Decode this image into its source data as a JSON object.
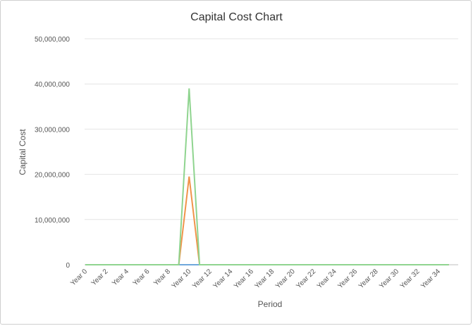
{
  "chart_data": {
    "type": "line",
    "title": "Capital Cost Chart",
    "xlabel": "Period",
    "ylabel": "Capital Cost",
    "ylim": [
      0,
      50000000
    ],
    "yticks": [
      0,
      10000000,
      20000000,
      30000000,
      40000000,
      50000000
    ],
    "ytick_labels": [
      "0",
      "10,000,000",
      "20,000,000",
      "30,000,000",
      "40,000,000",
      "50,000,000"
    ],
    "grid": true,
    "legend": "none",
    "categories": [
      "Year 0",
      "Year 1",
      "Year 2",
      "Year 3",
      "Year 4",
      "Year 5",
      "Year 6",
      "Year 7",
      "Year 8",
      "Year 9",
      "Year 10",
      "Year 11",
      "Year 12",
      "Year 13",
      "Year 14",
      "Year 15",
      "Year 16",
      "Year 17",
      "Year 18",
      "Year 19",
      "Year 20",
      "Year 21",
      "Year 22",
      "Year 23",
      "Year 24",
      "Year 25",
      "Year 26",
      "Year 27",
      "Year 28",
      "Year 29",
      "Year 30",
      "Year 31",
      "Year 32",
      "Year 33",
      "Year 34",
      "Year 35"
    ],
    "xtick_labels": [
      "Year 0",
      "Year 2",
      "Year 4",
      "Year 6",
      "Year 8",
      "Year 10",
      "Year 12",
      "Year 14",
      "Year 16",
      "Year 18",
      "Year 20",
      "Year 22",
      "Year 24",
      "Year 26",
      "Year 28",
      "Year 30",
      "Year 32",
      "Year 34"
    ],
    "series": [
      {
        "color": "#8fd48f",
        "values": [
          0,
          0,
          0,
          0,
          0,
          0,
          0,
          0,
          0,
          0,
          39000000,
          0,
          0,
          0,
          0,
          0,
          0,
          0,
          0,
          0,
          0,
          0,
          0,
          0,
          0,
          0,
          0,
          0,
          0,
          0,
          0,
          0,
          0,
          0,
          0,
          0
        ]
      },
      {
        "color": "#f0944a",
        "values": [
          0,
          0,
          0,
          0,
          0,
          0,
          0,
          0,
          0,
          0,
          19500000,
          0,
          0,
          0,
          0,
          0,
          0,
          0,
          0,
          0,
          0,
          0,
          0,
          0,
          0,
          0,
          0,
          0,
          0,
          0,
          0,
          0,
          0,
          0,
          0,
          0
        ]
      },
      {
        "color": "#6fa8dc",
        "values": [
          0,
          0,
          0,
          0,
          0,
          0,
          0,
          0,
          0,
          0,
          0,
          0,
          0,
          0,
          0,
          0,
          0,
          0,
          0,
          0,
          0,
          0,
          0,
          0,
          0,
          0,
          0,
          0,
          0,
          0,
          0,
          0,
          0,
          0,
          0,
          0
        ]
      }
    ]
  }
}
